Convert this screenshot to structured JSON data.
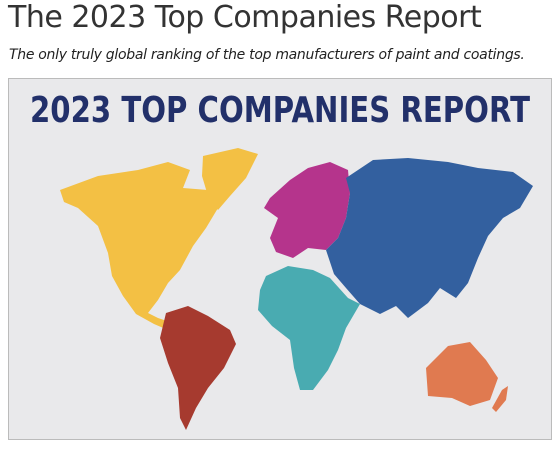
{
  "header": {
    "title": "The 2023 Top Companies Report",
    "subtitle": "The only truly global ranking of the top manufacturers of paint and coatings."
  },
  "banner": {
    "title": "2023 TOP COMPANIES REPORT"
  }
}
